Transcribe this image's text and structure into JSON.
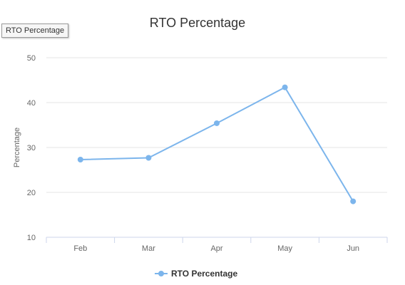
{
  "tooltip_label": "RTO Percentage",
  "chart_data": {
    "type": "line",
    "title": "RTO Percentage",
    "xlabel": "",
    "ylabel": "Percentage",
    "categories": [
      "Feb",
      "Mar",
      "Apr",
      "May",
      "Jun"
    ],
    "series": [
      {
        "name": "RTO Percentage",
        "values": [
          27.3,
          27.7,
          35.4,
          43.4,
          18.0
        ],
        "color": "#7cb5ec"
      }
    ],
    "ylim": [
      10,
      50
    ],
    "yticks": [
      10,
      20,
      30,
      40,
      50
    ],
    "grid": true,
    "legend_position": "bottom"
  }
}
